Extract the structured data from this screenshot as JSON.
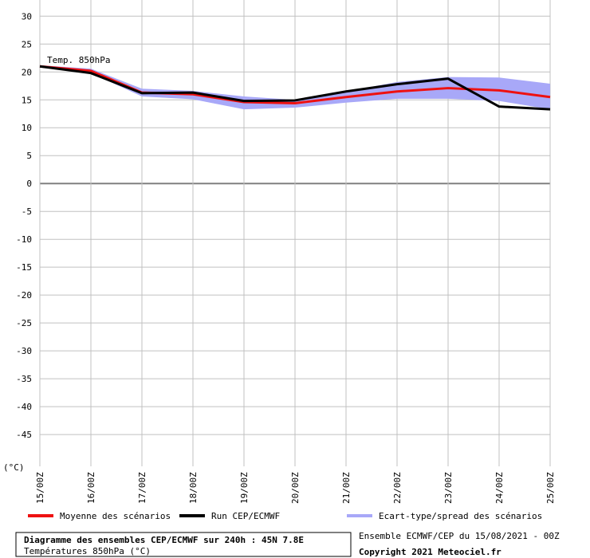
{
  "chart_data": {
    "type": "line",
    "annotation": "Temp. 850hPa",
    "y_label": "(°C)",
    "categories": [
      "15/00Z",
      "16/00Z",
      "17/00Z",
      "18/00Z",
      "19/00Z",
      "20/00Z",
      "21/00Z",
      "22/00Z",
      "23/00Z",
      "24/00Z",
      "25/00Z"
    ],
    "series": [
      {
        "name": "Moyenne des scénarios",
        "color": "#ee1111",
        "values": [
          21,
          20.2,
          16.3,
          16,
          14.6,
          14.4,
          15.5,
          16.5,
          17.1,
          16.7,
          15.5
        ]
      },
      {
        "name": "Run CEP/ECMWF",
        "color": "#000000",
        "values": [
          21,
          19.8,
          16.2,
          16.3,
          14.8,
          14.9,
          16.5,
          17.8,
          18.8,
          13.8,
          13.3
        ]
      },
      {
        "name": "Ecart-type/spread des scénarios",
        "color": "#a8a8f8",
        "lower": [
          20.8,
          19.8,
          15.6,
          15.1,
          13.3,
          13.6,
          14.5,
          15.2,
          15.2,
          14.8,
          13.3
        ],
        "upper": [
          21.2,
          20.6,
          17,
          16.6,
          15.6,
          15,
          16.5,
          18.2,
          19.1,
          19,
          17.9
        ]
      }
    ],
    "ylim": [
      -50.7,
      32.9
    ],
    "yticks": [
      30,
      25,
      20,
      15,
      10,
      5,
      0,
      -5,
      -10,
      -15,
      -20,
      -25,
      -30,
      -35,
      -40,
      -45
    ],
    "grid": true,
    "footer": {
      "title": "Diagramme des ensembles CEP/ECMWF sur 240h : 45N 7.8E",
      "subtitle": "Températures 850hPa (°C)",
      "run": "Ensemble ECMWF/CEP du 15/08/2021 - 00Z",
      "copyright": "Copyright 2021 Meteociel.fr"
    }
  }
}
